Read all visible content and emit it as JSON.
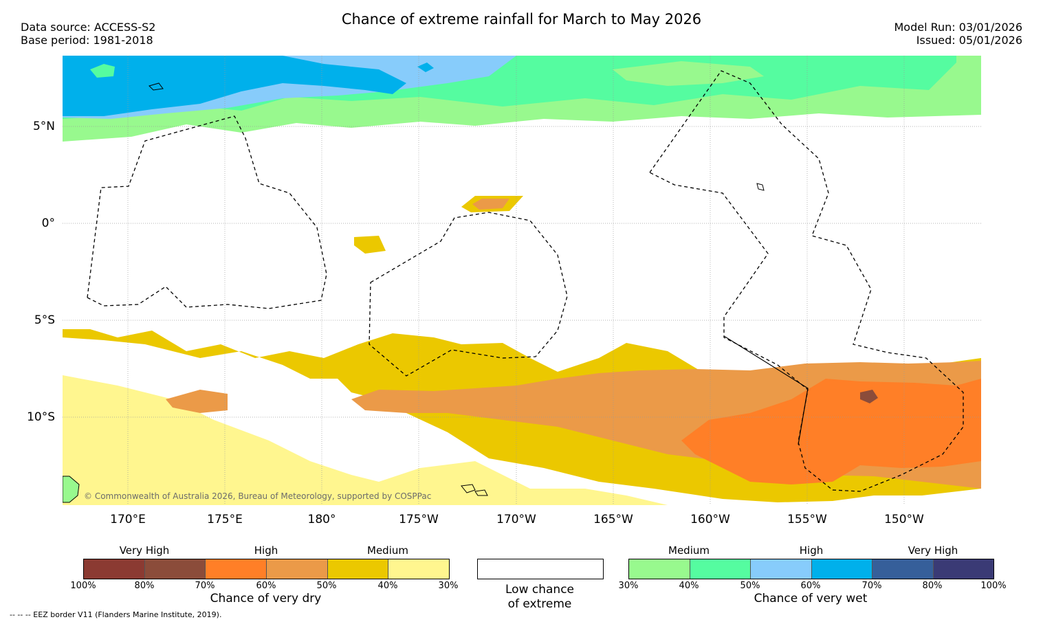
{
  "header": {
    "title": "Chance of extreme rainfall for March to May 2026",
    "data_source": "Data source: ACCESS-S2",
    "base_period": "Base period: 1981-2018",
    "model_run": "Model Run: 03/01/2026",
    "issued": "Issued: 05/01/2026"
  },
  "map": {
    "lat_labels": [
      "5°N",
      "0°",
      "5°S",
      "10°S"
    ],
    "lon_labels": [
      "170°E",
      "175°E",
      "180°",
      "175°W",
      "170°W",
      "165°W",
      "160°W",
      "155°W",
      "150°W"
    ],
    "copyright": "© Commonwealth of Australia 2026, Bureau of Meteorology, supported by COSPPac"
  },
  "legend": {
    "dry": {
      "categories": [
        "Very High",
        "High",
        "Medium"
      ],
      "ticks": [
        "100%",
        "80%",
        "70%",
        "60%",
        "50%",
        "40%",
        "30%"
      ],
      "label": "Chance of very dry",
      "colors": [
        "#8b3a32",
        "#8b4c3a",
        "#ff7f27",
        "#eb9a48",
        "#ebc800",
        "#fff68f"
      ]
    },
    "low": {
      "label_line1": "Low chance",
      "label_line2": "of extreme"
    },
    "wet": {
      "categories": [
        "Medium",
        "High",
        "Very High"
      ],
      "ticks": [
        "30%",
        "40%",
        "50%",
        "60%",
        "70%",
        "80%",
        "100%"
      ],
      "label": "Chance of very wet",
      "colors": [
        "#98f98e",
        "#55fca0",
        "#87ccfb",
        "#00b0eb",
        "#365f9a",
        "#3a3a75"
      ]
    }
  },
  "footer": {
    "eez_note": "--  --  -- EEZ border V11 (Flanders Marine Institute, 2019)."
  }
}
